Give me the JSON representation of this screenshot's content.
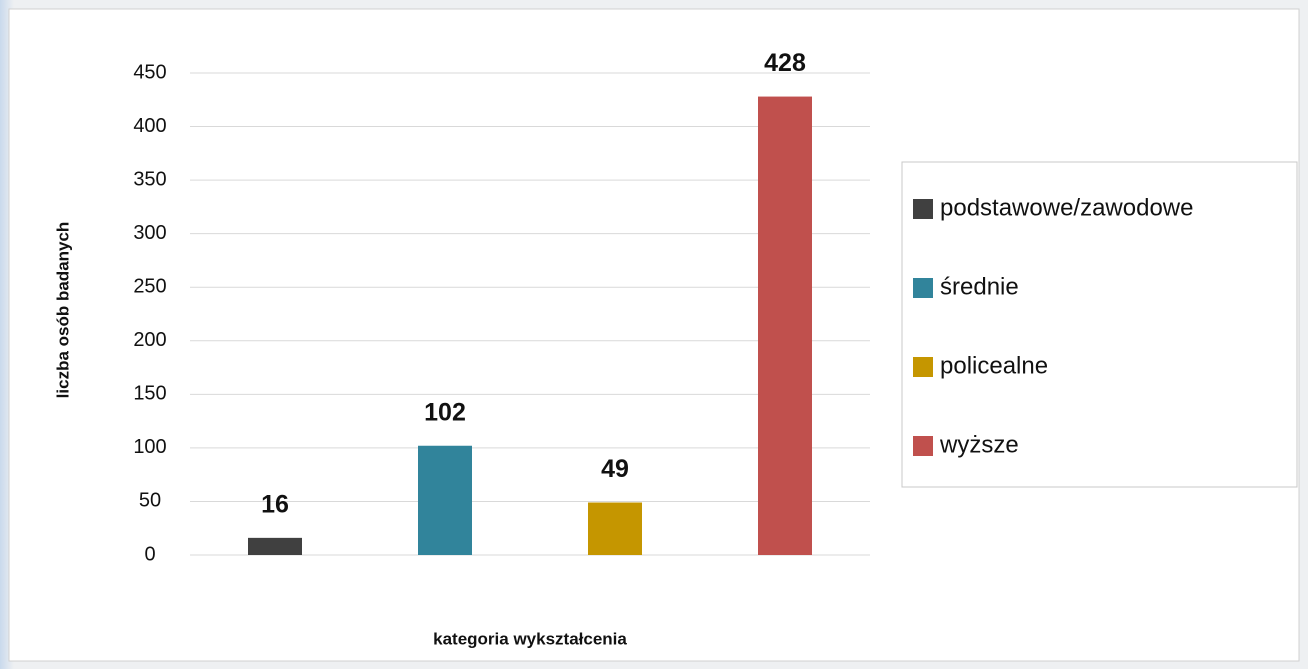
{
  "chart_data": {
    "type": "bar",
    "xlabel": "kategoria wykształcenia",
    "ylabel": "liczba osób badanych",
    "series": [
      {
        "name": "podstawowe/zawodowe",
        "color": "#404040",
        "values": [
          16
        ]
      },
      {
        "name": "średnie",
        "color": "#31849b",
        "values": [
          102
        ]
      },
      {
        "name": "policealne",
        "color": "#c59600",
        "values": [
          49
        ]
      },
      {
        "name": "wyższe",
        "color": "#c0504d",
        "values": [
          428
        ]
      }
    ],
    "ylim": [
      0,
      450
    ],
    "yticks": [
      0,
      50,
      100,
      150,
      200,
      250,
      300,
      350,
      400,
      450
    ],
    "grid": true,
    "legend": "right"
  }
}
